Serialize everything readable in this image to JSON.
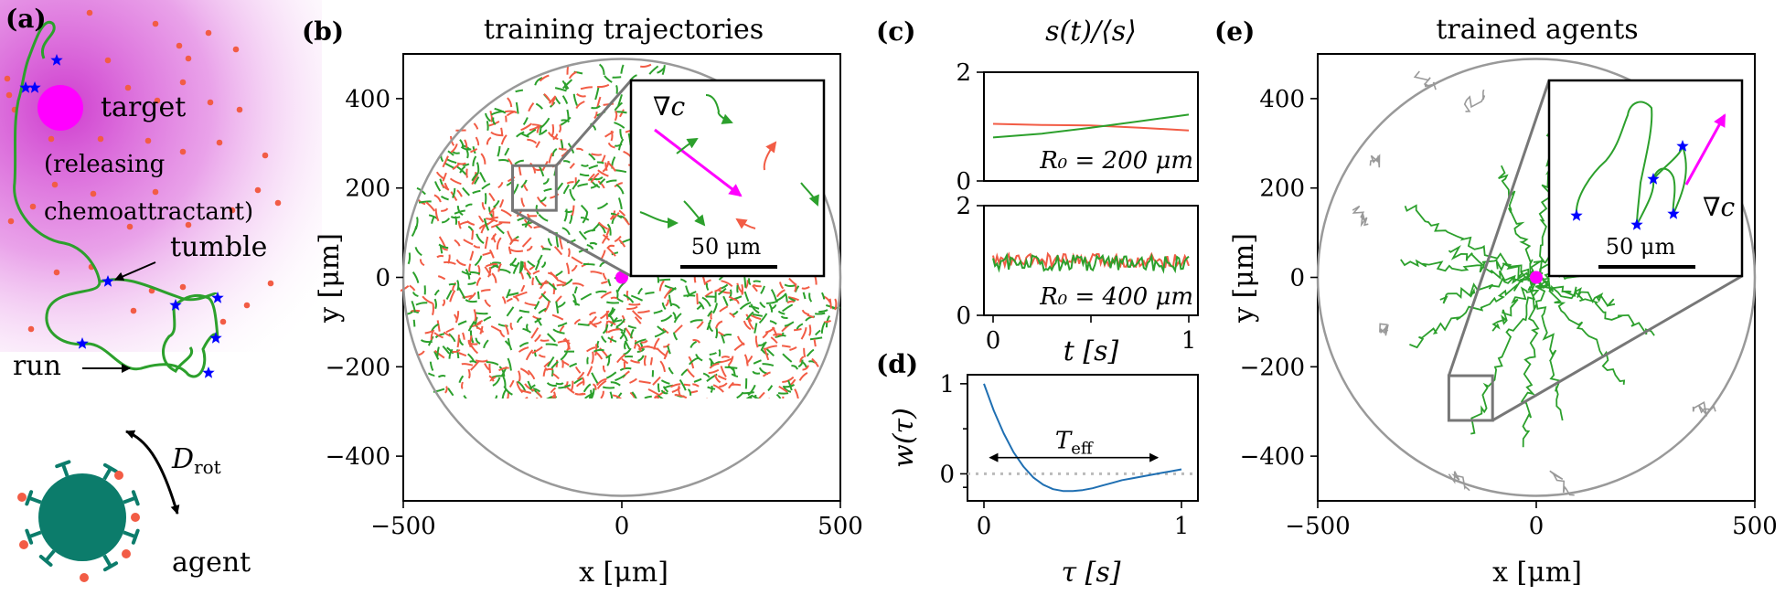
{
  "panel_a": {
    "label": "(a)",
    "target_label": "target",
    "releasing_label_1": "(releasing",
    "releasing_label_2": "chemoattractant)",
    "tumble_label": "tumble",
    "run_label": "run",
    "rot_label_main": "D",
    "rot_label_sub": "rot",
    "agent_label": "agent",
    "colors": {
      "target": "#ff00ff",
      "trajectory": "#2ca02c",
      "tumble": "#0000ff",
      "agent": "#0c7c6b",
      "chemo": "#f25c45",
      "tumble_label": "#2222dd",
      "run_label": "#2ca02c",
      "agent_label": "#0c7c6b"
    }
  },
  "chart_data": [
    {
      "id": "b",
      "panel_label": "(b)",
      "type": "scatter",
      "title": "training trajectories",
      "xlabel": "x [μm]",
      "ylabel": "y [μm]",
      "xlim": [
        -500,
        500
      ],
      "ylim": [
        -500,
        500
      ],
      "xticks": [
        -500,
        0,
        500
      ],
      "yticks": [
        -400,
        -200,
        0,
        200,
        400
      ],
      "xtick_labels": [
        "−500",
        "0",
        "500"
      ],
      "ytick_labels": [
        "−400",
        "−200",
        "0",
        "200",
        "400"
      ],
      "arena_radius": 500,
      "target": [
        0,
        0
      ],
      "zoom_box": {
        "x": [
          -250,
          -150
        ],
        "y": [
          150,
          250
        ]
      },
      "series": [
        {
          "name": "segments A",
          "color": "#2ca02c"
        },
        {
          "name": "segments B",
          "color": "#f25c45"
        }
      ],
      "inset": {
        "gradient_label": "∇c",
        "scalebar_label": "50 μm",
        "scalebar_um": 50
      }
    },
    {
      "id": "c",
      "panel_label": "(c)",
      "type": "line",
      "title": "s(t)/⟨s⟩",
      "xlabel": "t [s]",
      "xlim": [
        0,
        1
      ],
      "xticks": [
        0,
        0.5,
        1
      ],
      "xtick_labels": [
        "0",
        "",
        "1"
      ],
      "subplots": [
        {
          "ylim": [
            0,
            2
          ],
          "yticks": [
            0,
            2
          ],
          "ytick_labels": [
            "0",
            "2"
          ],
          "annotation": "R₀ = 200 μm",
          "series": [
            {
              "name": "orange",
              "color": "#f25c45",
              "x": [
                0,
                0.25,
                0.5,
                0.75,
                1
              ],
              "y": [
                1.05,
                1.03,
                1.02,
                0.98,
                0.93
              ]
            },
            {
              "name": "green",
              "color": "#2ca02c",
              "x": [
                0,
                0.25,
                0.5,
                0.75,
                1
              ],
              "y": [
                0.8,
                0.87,
                0.98,
                1.1,
                1.22
              ]
            }
          ]
        },
        {
          "ylim": [
            0,
            2
          ],
          "yticks": [
            0,
            2
          ],
          "ytick_labels": [
            "0",
            "2"
          ],
          "annotation": "R₀ = 400 μm",
          "series": [
            {
              "name": "orange",
              "color": "#f25c45",
              "mean": 1.0,
              "noise": 0.12
            },
            {
              "name": "green",
              "color": "#2ca02c",
              "mean": 0.95,
              "noise": 0.15
            }
          ]
        }
      ]
    },
    {
      "id": "d",
      "panel_label": "(d)",
      "type": "line",
      "xlabel": "τ [s]",
      "ylabel": "w(τ)",
      "xlim": [
        0,
        1
      ],
      "ylim": [
        -0.3,
        1.1
      ],
      "xticks": [
        0,
        1
      ],
      "xtick_labels": [
        "0",
        "1"
      ],
      "yticks": [
        0,
        1
      ],
      "ytick_labels": [
        "0",
        "1"
      ],
      "annotation": "T_eff",
      "annotation_main": "T",
      "annotation_sub": "eff",
      "annotation_span": [
        0.03,
        0.88
      ],
      "baseline": 0,
      "series": [
        {
          "name": "w",
          "color": "#1f6fb2",
          "x": [
            0,
            0.05,
            0.1,
            0.15,
            0.2,
            0.25,
            0.3,
            0.35,
            0.4,
            0.45,
            0.5,
            0.55,
            0.6,
            0.65,
            0.7,
            0.75,
            0.8,
            0.85,
            0.9,
            0.95,
            1.0
          ],
          "y": [
            1.0,
            0.7,
            0.45,
            0.24,
            0.08,
            -0.04,
            -0.12,
            -0.17,
            -0.19,
            -0.19,
            -0.18,
            -0.16,
            -0.13,
            -0.1,
            -0.07,
            -0.05,
            -0.03,
            -0.01,
            0.01,
            0.03,
            0.05
          ]
        }
      ]
    },
    {
      "id": "e",
      "panel_label": "(e)",
      "type": "line",
      "title": "trained agents",
      "xlabel": "x [μm]",
      "ylabel": "y [μm]",
      "xlim": [
        -500,
        500
      ],
      "ylim": [
        -500,
        500
      ],
      "xticks": [
        -500,
        0,
        500
      ],
      "yticks": [
        -400,
        -200,
        0,
        200,
        400
      ],
      "xtick_labels": [
        "−500",
        "0",
        "500"
      ],
      "ytick_labels": [
        "−400",
        "−200",
        "0",
        "200",
        "400"
      ],
      "arena_radius": 500,
      "target": [
        0,
        0
      ],
      "zoom_box": {
        "x": [
          -200,
          -100
        ],
        "y": [
          -320,
          -220
        ]
      },
      "series": [
        {
          "name": "converging",
          "color": "#2ca02c"
        },
        {
          "name": "lost",
          "color": "#999999"
        }
      ],
      "inset": {
        "gradient_label": "∇c",
        "scalebar_label": "50 μm",
        "scalebar_um": 50
      }
    }
  ]
}
